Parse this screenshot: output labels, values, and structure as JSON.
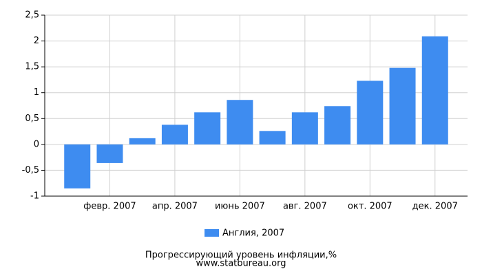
{
  "chart_data": {
    "type": "bar",
    "title": "Прогрессирующий уровень инфляции,%",
    "source": "www.statbureau.org",
    "categories": [
      null,
      "февр. 2007",
      null,
      "апр. 2007",
      null,
      "июнь 2007",
      null,
      "авг. 2007",
      null,
      "окт. 2007",
      null,
      "дек. 2007"
    ],
    "series": [
      {
        "name": "Англия, 2007",
        "color": "#3e8cf0",
        "values": [
          -0.85,
          -0.36,
          0.12,
          0.38,
          0.62,
          0.86,
          0.26,
          0.62,
          0.74,
          1.23,
          1.48,
          2.09
        ]
      }
    ],
    "ylim": [
      -1,
      2.5
    ],
    "yticks": [
      {
        "value": 2.5,
        "label": "2,5"
      },
      2,
      {
        "value": 1.5,
        "label": "1,5"
      },
      1,
      {
        "value": 0.5,
        "label": "0,5"
      },
      0,
      {
        "value": -0.5,
        "label": "-0,5"
      },
      -1
    ],
    "grid": true
  }
}
